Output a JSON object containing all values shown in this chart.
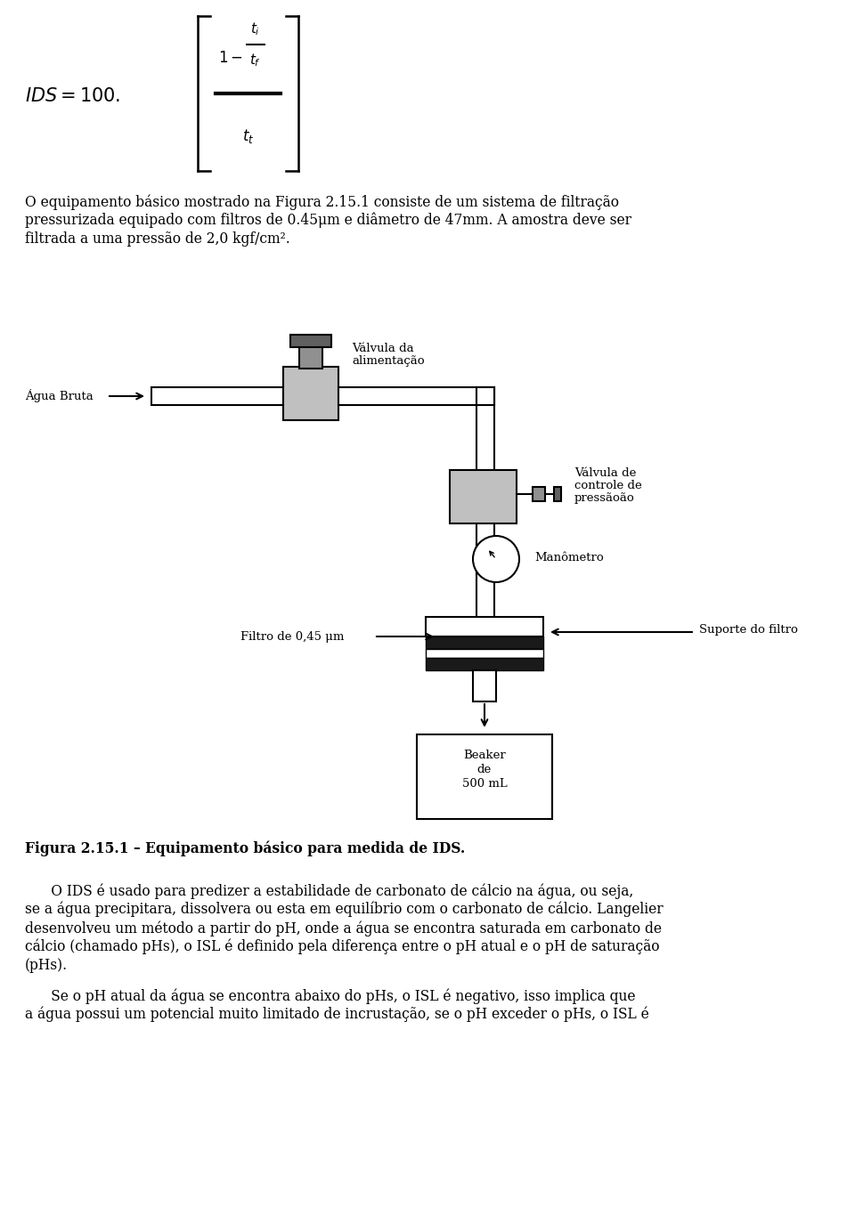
{
  "bg_color": "#ffffff",
  "text_color": "#000000",
  "page_width": 9.6,
  "page_height": 13.57,
  "para1_lines": [
    "O equipamento básico mostrado na Figura 2.15.1 consiste de um sistema de filtração",
    "pressurizada equipado com filtros de 0.45μm e diâmetro de 47mm. A amostra deve ser",
    "filtrada a uma pressão de 2,0 kgf/cm²."
  ],
  "caption": "Figura 2.15.1 – Equipamento básico para medida de IDS.",
  "para2_lines": [
    "      O IDS é usado para predizer a estabilidade de carbonato de cálcio na água, ou seja,",
    "se a água precipitara, dissolvera ou esta em equilíbrio com o carbonato de cálcio. Langelier",
    "desenvolveu um método a partir do pH, onde a água se encontra saturada em carbonato de",
    "cálcio (chamado pHs), o ISL é definido pela diferença entre o pH atual e o pH de saturação",
    "(pHs)."
  ],
  "para3_lines": [
    "      Se o pH atual da água se encontra abaixo do pHs, o ISL é negativo, isso implica que",
    "a água possui um potencial muito limitado de incrustação, se o pH exceder o pHs, o ISL é"
  ]
}
